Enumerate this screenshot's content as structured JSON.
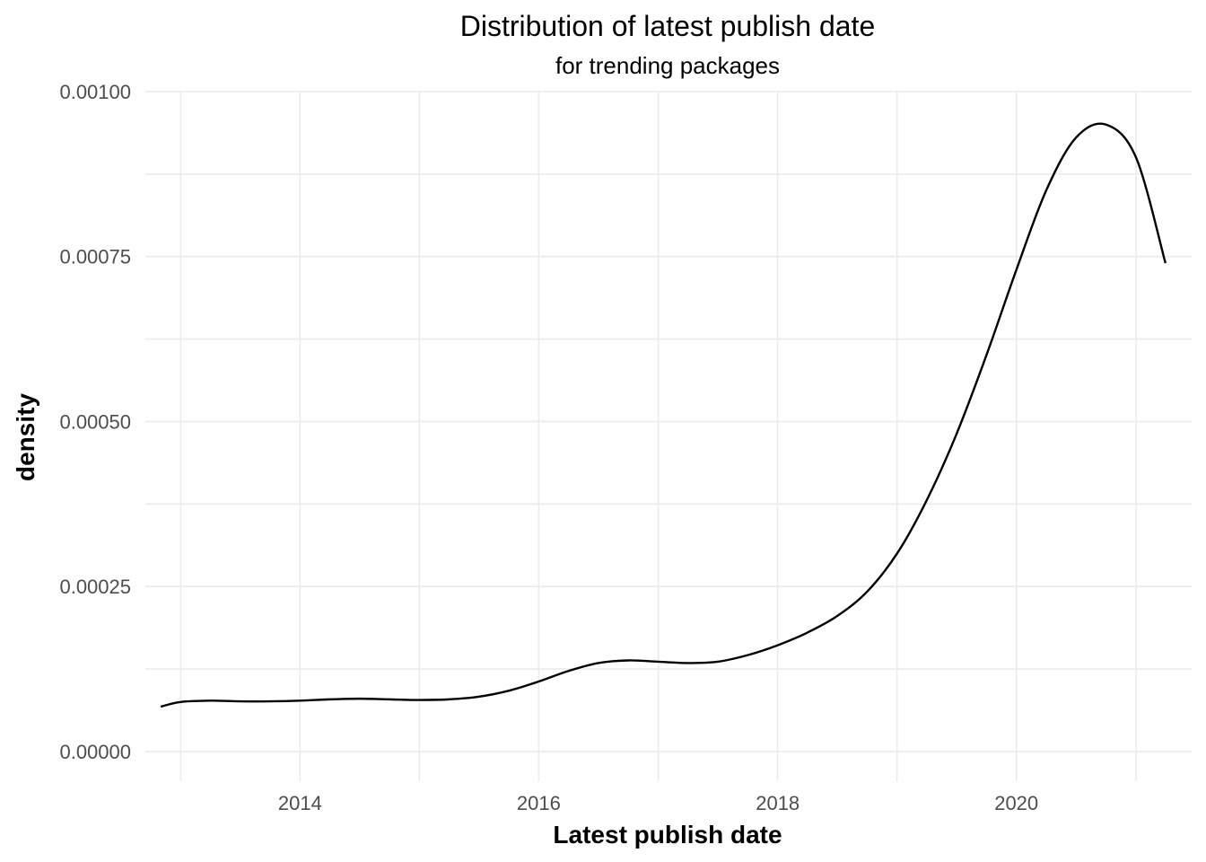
{
  "chart_data": {
    "type": "line",
    "title": "Distribution of latest publish date",
    "subtitle": "for trending packages",
    "xlabel": "Latest publish date",
    "ylabel": "density",
    "x_tick_labels": [
      "2014",
      "2016",
      "2018",
      "2020"
    ],
    "y_tick_labels": [
      "0.00000",
      "0.00025",
      "0.00050",
      "0.00075",
      "0.00100"
    ],
    "xlim": [
      "2012-09-15",
      "2021-06-20"
    ],
    "ylim": [
      -4.5e-05,
      0.001
    ],
    "grid": true,
    "legend": "none",
    "series": [
      {
        "color": "#000000",
        "x": [
          "2012-11-01",
          "2013-01-01",
          "2013-04-01",
          "2013-07-01",
          "2013-10-01",
          "2014-01-01",
          "2014-04-01",
          "2014-07-01",
          "2014-10-01",
          "2015-01-01",
          "2015-04-01",
          "2015-07-01",
          "2015-10-01",
          "2016-01-01",
          "2016-04-01",
          "2016-07-01",
          "2016-10-01",
          "2017-01-01",
          "2017-04-01",
          "2017-07-01",
          "2017-10-01",
          "2018-01-01",
          "2018-04-01",
          "2018-07-01",
          "2018-10-01",
          "2019-01-01",
          "2019-04-01",
          "2019-07-01",
          "2019-10-01",
          "2020-01-01",
          "2020-04-01",
          "2020-07-01",
          "2020-10-01",
          "2021-01-01",
          "2021-04-01"
        ],
        "y": [
          6.8e-05,
          7.5e-05,
          7.7e-05,
          7.6e-05,
          7.6e-05,
          7.7e-05,
          7.9e-05,
          8e-05,
          7.9e-05,
          7.8e-05,
          7.9e-05,
          8.3e-05,
          9.2e-05,
          0.000106,
          0.000122,
          0.000134,
          0.000138,
          0.000136,
          0.000134,
          0.000136,
          0.000146,
          0.000161,
          0.00018,
          0.000205,
          0.000242,
          0.0003,
          0.00038,
          0.00048,
          0.0006,
          0.00073,
          0.00085,
          0.00093,
          0.00095,
          0.0009,
          0.00074
        ]
      }
    ]
  }
}
